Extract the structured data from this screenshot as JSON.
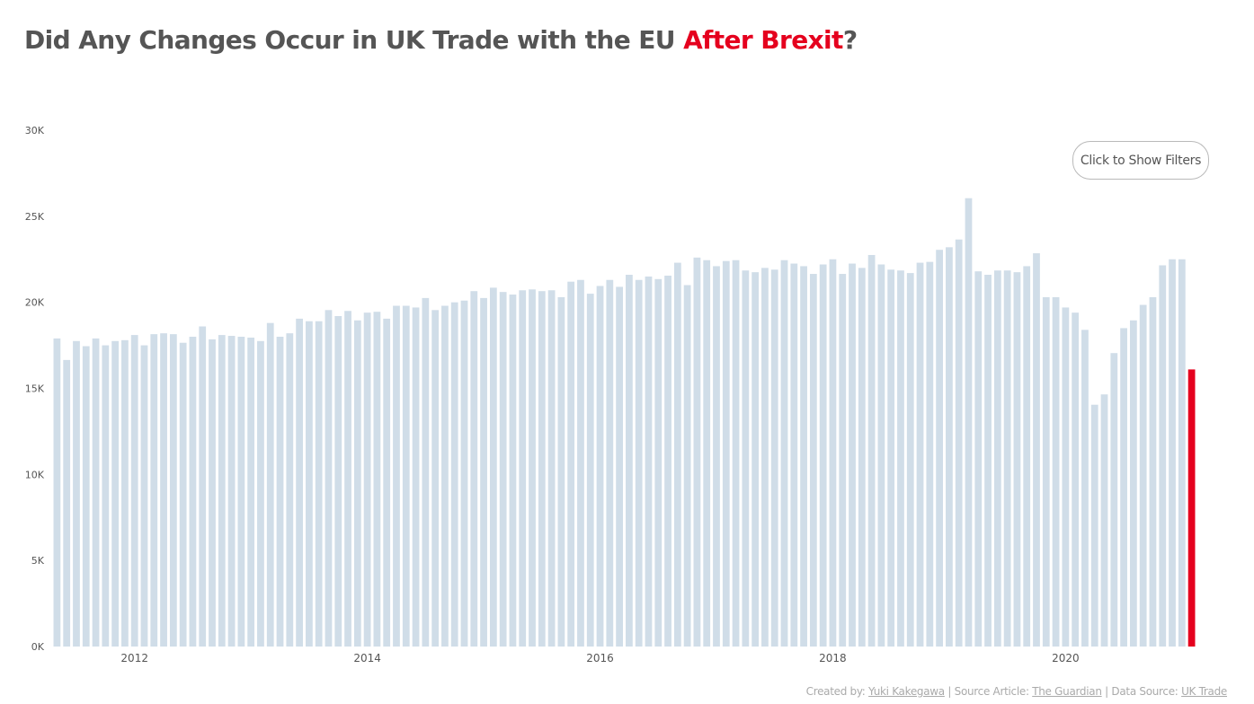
{
  "header": {
    "title_main": "Did Any Changes Occur in UK Trade with the EU ",
    "title_highlight": "After Brexit",
    "title_end": "?"
  },
  "controls": {
    "filters_label": "Click to Show Filters"
  },
  "footer": {
    "created_by_label": "Created by: ",
    "created_by_name": "Yuki Kakegawa",
    "source_article_label": " | Source Article: ",
    "source_article_name": "The Guardian",
    "data_source_label": " | Data Source: ",
    "data_source_name": "UK Trade"
  },
  "colors": {
    "title": "#555555",
    "highlight": "#e5001e",
    "bar": "#d0dde8",
    "highlight_bar": "#e5001e",
    "axis_text": "#555555",
    "footer_text": "#aaaaaa"
  },
  "chart_data": {
    "type": "bar",
    "title": "Did Any Changes Occur in UK Trade with the EU After Brexit?",
    "xlabel": "",
    "ylabel": "",
    "ylim": [
      0,
      30000
    ],
    "y_ticks": [
      {
        "value": 0,
        "label": "0K"
      },
      {
        "value": 5000,
        "label": "5K"
      },
      {
        "value": 10000,
        "label": "10K"
      },
      {
        "value": 15000,
        "label": "15K"
      },
      {
        "value": 20000,
        "label": "20K"
      },
      {
        "value": 25000,
        "label": "25K"
      },
      {
        "value": 30000,
        "label": "30K"
      }
    ],
    "x_ticks": [
      {
        "index": 8,
        "label": "2012"
      },
      {
        "index": 32,
        "label": "2014"
      },
      {
        "index": 56,
        "label": "2016"
      },
      {
        "index": 80,
        "label": "2018"
      },
      {
        "index": 104,
        "label": "2020"
      }
    ],
    "start": "2011-04",
    "grid": false,
    "highlight_index": 117,
    "values": [
      17900,
      16650,
      17750,
      17450,
      17900,
      17500,
      17750,
      17800,
      18100,
      17500,
      18150,
      18200,
      18150,
      17650,
      18000,
      18600,
      17850,
      18100,
      18050,
      18000,
      17950,
      17750,
      18800,
      18000,
      18200,
      19050,
      18900,
      18900,
      19550,
      19200,
      19500,
      18950,
      19400,
      19450,
      19050,
      19800,
      19800,
      19700,
      20250,
      19550,
      19800,
      20000,
      20100,
      20650,
      20250,
      20850,
      20600,
      20450,
      20700,
      20750,
      20650,
      20700,
      20300,
      21200,
      21300,
      20500,
      20950,
      21300,
      20900,
      21600,
      21300,
      21500,
      21350,
      21550,
      22300,
      21000,
      22600,
      22450,
      22100,
      22400,
      22450,
      21850,
      21750,
      22000,
      21900,
      22450,
      22250,
      22100,
      21650,
      22200,
      22500,
      21650,
      22250,
      22000,
      22750,
      22200,
      21900,
      21850,
      21700,
      22300,
      22350,
      23050,
      23200,
      23650,
      26050,
      21800,
      21600,
      21850,
      21850,
      21750,
      22100,
      22850,
      20300,
      20300,
      19700,
      19400,
      18400,
      14050,
      14650,
      17050,
      18500,
      18950,
      19850,
      20300,
      22150,
      22500,
      22500,
      16100
    ]
  }
}
